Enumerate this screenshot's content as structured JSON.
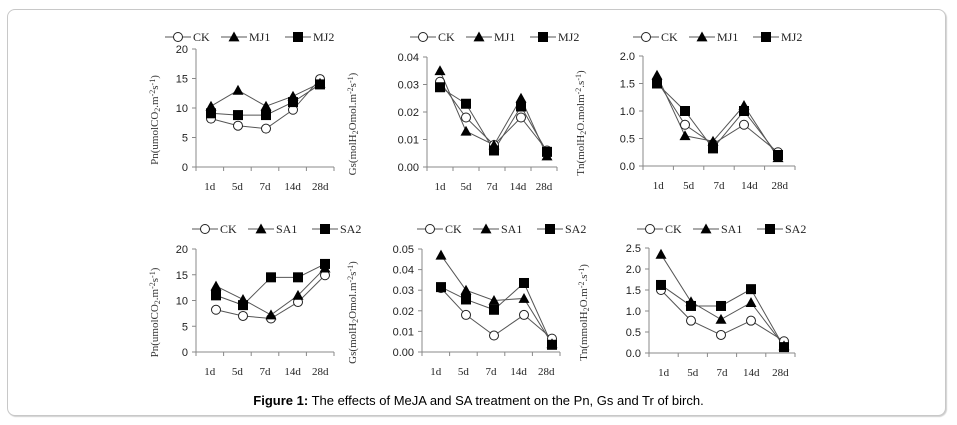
{
  "figure": {
    "caption_label": "Figure 1:",
    "caption_text": " The effects of MeJA and SA treatment on the Pn, Gs and Tr of birch."
  },
  "chart_data": [
    {
      "id": "pn-mj",
      "type": "line",
      "categories": [
        "1d",
        "5d",
        "7d",
        "14d",
        "28d"
      ],
      "ylabel": "Pn(umolCO2.m-2s-1)",
      "ylabel_parts": [
        "Pn(umolCO",
        "2",
        ".m",
        "-2",
        "s",
        "-1",
        ")"
      ],
      "ylim": [
        0,
        20
      ],
      "yticks": [
        "0",
        "5",
        "10",
        "15",
        "20"
      ],
      "legend_position": "top",
      "series": [
        {
          "name": "CK",
          "marker": "circle",
          "values": [
            8.2,
            7.0,
            6.5,
            9.7,
            14.9
          ]
        },
        {
          "name": "MJ1",
          "marker": "triangle",
          "values": [
            10.3,
            13.0,
            10.3,
            12.0,
            14.2
          ]
        },
        {
          "name": "MJ2",
          "marker": "square",
          "values": [
            9.1,
            8.8,
            8.8,
            11.0,
            14.0
          ]
        }
      ]
    },
    {
      "id": "gs-mj",
      "type": "line",
      "categories": [
        "1d",
        "5d",
        "7d",
        "14d",
        "28d"
      ],
      "ylabel": "Gs(molH2Omol.m-2s-1)",
      "ylabel_parts": [
        "Gs(molH",
        "2",
        "Omol.m",
        "-2",
        "s",
        "-1",
        ")"
      ],
      "ylim": [
        0,
        0.04
      ],
      "yticks": [
        "0.00",
        "0.01",
        "0.02",
        "0.03",
        "0.04"
      ],
      "legend_position": "top",
      "series": [
        {
          "name": "CK",
          "marker": "circle",
          "values": [
            0.031,
            0.018,
            0.008,
            0.018,
            0.006
          ]
        },
        {
          "name": "MJ1",
          "marker": "triangle",
          "values": [
            0.035,
            0.013,
            0.008,
            0.025,
            0.004
          ]
        },
        {
          "name": "MJ2",
          "marker": "square",
          "values": [
            0.029,
            0.023,
            0.006,
            0.022,
            0.0055
          ]
        }
      ]
    },
    {
      "id": "tr-mj",
      "type": "line",
      "categories": [
        "1d",
        "5d",
        "7d",
        "14d",
        "28d"
      ],
      "ylabel": "Tn(molH2O.molm-2.s-1)",
      "ylabel_parts": [
        "Tn(molH",
        "2",
        "O.molm",
        "-2",
        ".s",
        "-1",
        ")"
      ],
      "ylim": [
        0,
        2.0
      ],
      "yticks": [
        "0.0",
        "0.5",
        "1.0",
        "1.5",
        "2.0"
      ],
      "legend_position": "top",
      "series": [
        {
          "name": "CK",
          "marker": "circle",
          "values": [
            1.55,
            0.75,
            0.4,
            0.75,
            0.25
          ]
        },
        {
          "name": "MJ1",
          "marker": "triangle",
          "values": [
            1.65,
            0.55,
            0.45,
            1.1,
            0.15
          ]
        },
        {
          "name": "MJ2",
          "marker": "square",
          "values": [
            1.5,
            1.0,
            0.32,
            1.0,
            0.2
          ]
        }
      ]
    },
    {
      "id": "pn-sa",
      "type": "line",
      "categories": [
        "1d",
        "5d",
        "7d",
        "14d",
        "28d"
      ],
      "ylabel": "Pn(umolCO2.m-2s-1)",
      "ylabel_parts": [
        "Pn(umolCO",
        "2",
        ".m",
        "-2",
        "s",
        "-1",
        ")"
      ],
      "ylim": [
        0,
        20
      ],
      "yticks": [
        "0",
        "5",
        "10",
        "15",
        "20"
      ],
      "legend_position": "top",
      "series": [
        {
          "name": "CK",
          "marker": "circle",
          "values": [
            8.2,
            7.0,
            6.5,
            9.7,
            14.9
          ]
        },
        {
          "name": "SA1",
          "marker": "triangle",
          "values": [
            12.8,
            10.2,
            7.2,
            11.0,
            16.3
          ]
        },
        {
          "name": "SA2",
          "marker": "square",
          "values": [
            11.0,
            9.1,
            14.5,
            14.5,
            17.1
          ]
        }
      ]
    },
    {
      "id": "gs-sa",
      "type": "line",
      "categories": [
        "1d",
        "5d",
        "7d",
        "14d",
        "28d"
      ],
      "ylabel": "Gs(molH2Omol.m-2s-1)",
      "ylabel_parts": [
        "Gs(molH",
        "2",
        "Omol.m",
        "-2",
        "s",
        "-1",
        ")"
      ],
      "ylim": [
        0,
        0.05
      ],
      "yticks": [
        "0.00",
        "0.01",
        "0.02",
        "0.03",
        "0.04",
        "0.05"
      ],
      "legend_position": "top",
      "series": [
        {
          "name": "CK",
          "marker": "circle",
          "values": [
            0.031,
            0.018,
            0.008,
            0.018,
            0.0065
          ]
        },
        {
          "name": "SA1",
          "marker": "triangle",
          "values": [
            0.047,
            0.03,
            0.025,
            0.026,
            0.004
          ]
        },
        {
          "name": "SA2",
          "marker": "square",
          "values": [
            0.0315,
            0.0255,
            0.0205,
            0.0335,
            0.0035
          ]
        }
      ]
    },
    {
      "id": "tr-sa",
      "type": "line",
      "categories": [
        "1d",
        "5d",
        "7d",
        "14d",
        "28d"
      ],
      "ylabel": "Tn(mmolH2O.m-2.s-1)",
      "ylabel_parts": [
        "Tn(mmolH",
        "2",
        "O.m",
        "-2",
        ".s",
        "-1",
        ")"
      ],
      "ylim": [
        0,
        2.5
      ],
      "yticks": [
        "0.0",
        "0.5",
        "1.0",
        "1.5",
        "2.0",
        "2.5"
      ],
      "legend_position": "top",
      "series": [
        {
          "name": "CK",
          "marker": "circle",
          "values": [
            1.5,
            0.77,
            0.43,
            0.77,
            0.28
          ]
        },
        {
          "name": "SA1",
          "marker": "triangle",
          "values": [
            2.35,
            1.22,
            0.8,
            1.2,
            0.17
          ]
        },
        {
          "name": "SA2",
          "marker": "square",
          "values": [
            1.62,
            1.12,
            1.12,
            1.52,
            0.14
          ]
        }
      ]
    }
  ]
}
